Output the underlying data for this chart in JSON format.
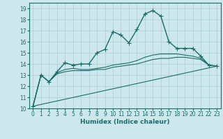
{
  "xlabel": "Humidex (Indice chaleur)",
  "bg_color": "#cde8ec",
  "grid_color": "#a8cdd4",
  "line_color": "#1a6b6b",
  "xlim": [
    -0.5,
    23.5
  ],
  "ylim": [
    10,
    19.5
  ],
  "yticks": [
    10,
    11,
    12,
    13,
    14,
    15,
    16,
    17,
    18,
    19
  ],
  "xticks": [
    0,
    1,
    2,
    3,
    4,
    5,
    6,
    7,
    8,
    9,
    10,
    11,
    12,
    13,
    14,
    15,
    16,
    17,
    18,
    19,
    20,
    21,
    22,
    23
  ],
  "series": [
    {
      "x": [
        0,
        1,
        2,
        3,
        4,
        5,
        6,
        7,
        8,
        9,
        10,
        11,
        12,
        13,
        14,
        15,
        16,
        17,
        18,
        19,
        20,
        21,
        22,
        23
      ],
      "y": [
        10.2,
        13.0,
        12.4,
        13.3,
        14.1,
        13.9,
        14.0,
        14.0,
        15.0,
        15.3,
        16.9,
        16.6,
        15.9,
        17.1,
        18.5,
        18.8,
        18.3,
        16.0,
        15.4,
        15.4,
        15.4,
        14.7,
        13.9,
        13.8
      ],
      "marker": "+",
      "markersize": 4,
      "linewidth": 1.0
    },
    {
      "x": [
        0,
        1,
        2,
        3,
        4,
        5,
        6,
        7,
        8,
        9,
        10,
        11,
        12,
        13,
        14,
        15,
        16,
        17,
        18,
        19,
        20,
        21,
        22,
        23
      ],
      "y": [
        10.2,
        13.0,
        12.4,
        13.2,
        13.5,
        13.6,
        13.5,
        13.5,
        13.6,
        13.7,
        13.9,
        14.0,
        14.1,
        14.3,
        14.6,
        14.8,
        14.9,
        14.9,
        14.9,
        14.8,
        14.7,
        14.5,
        13.9,
        13.8
      ],
      "marker": null,
      "markersize": 0,
      "linewidth": 0.8
    },
    {
      "x": [
        0,
        1,
        2,
        3,
        4,
        5,
        6,
        7,
        8,
        9,
        10,
        11,
        12,
        13,
        14,
        15,
        16,
        17,
        18,
        19,
        20,
        21,
        22,
        23
      ],
      "y": [
        10.2,
        13.0,
        12.4,
        13.1,
        13.3,
        13.4,
        13.4,
        13.4,
        13.5,
        13.5,
        13.7,
        13.8,
        13.9,
        14.0,
        14.2,
        14.4,
        14.5,
        14.5,
        14.6,
        14.6,
        14.5,
        14.4,
        13.9,
        13.8
      ],
      "marker": null,
      "markersize": 0,
      "linewidth": 0.8
    },
    {
      "x": [
        0,
        23
      ],
      "y": [
        10.2,
        13.8
      ],
      "marker": null,
      "markersize": 0,
      "linewidth": 0.8
    }
  ]
}
